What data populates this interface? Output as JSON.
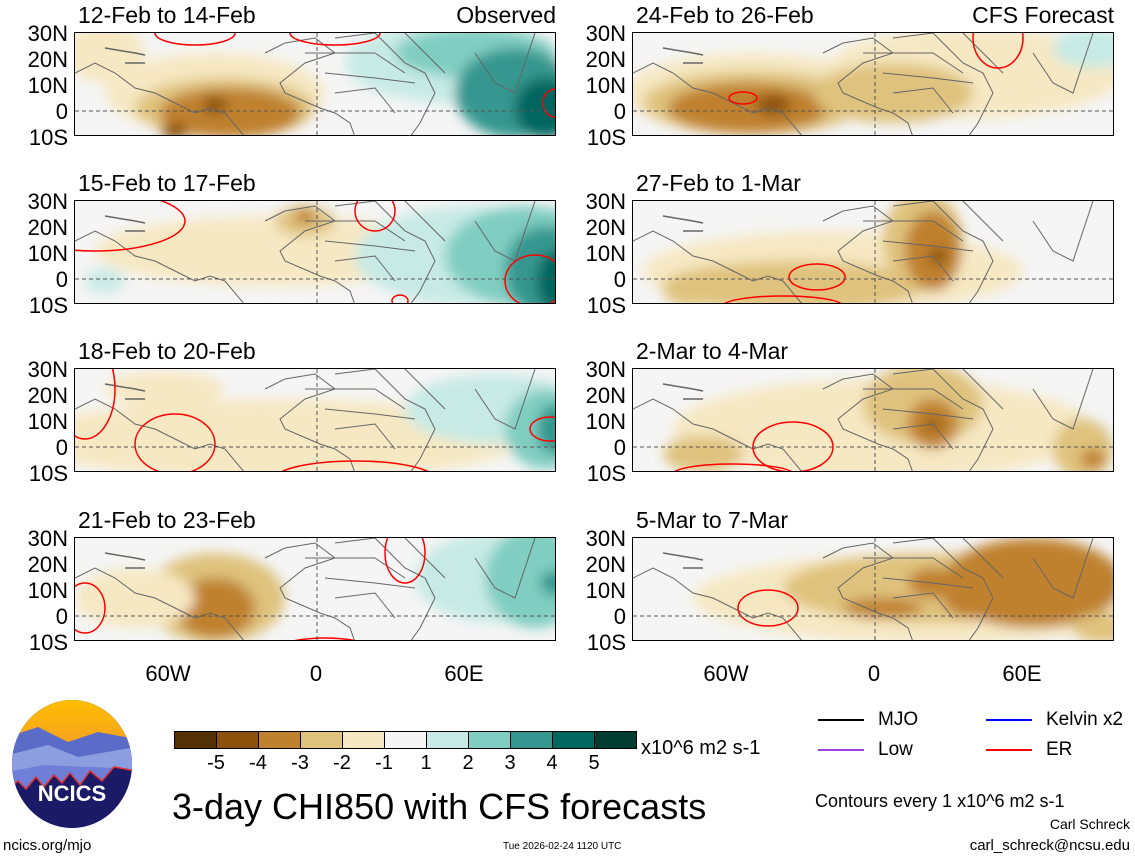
{
  "panels": [
    {
      "title": "12-Feb to 14-Feb",
      "label": "Observed"
    },
    {
      "title": "24-Feb to 26-Feb",
      "label": "CFS Forecast"
    },
    {
      "title": "15-Feb to 17-Feb",
      "label": ""
    },
    {
      "title": "27-Feb to 1-Mar",
      "label": ""
    },
    {
      "title": "18-Feb to 20-Feb",
      "label": ""
    },
    {
      "title": "2-Mar to 4-Mar",
      "label": ""
    },
    {
      "title": "21-Feb to 23-Feb",
      "label": ""
    },
    {
      "title": "5-Mar to 7-Mar",
      "label": ""
    }
  ],
  "lat_labels": [
    "30N",
    "20N",
    "10N",
    "0",
    "10S"
  ],
  "lon_labels": [
    "60W",
    "0",
    "60E"
  ],
  "colorbar": {
    "colors": [
      "#543005",
      "#8c510a",
      "#bf812d",
      "#dfc27d",
      "#f6e8c3",
      "#f5f5f5",
      "#c7eae5",
      "#80cdc1",
      "#35978f",
      "#01665e",
      "#003c30"
    ],
    "ticks": [
      "-5",
      "-4",
      "-3",
      "-2",
      "-1",
      "1",
      "2",
      "3",
      "4",
      "5"
    ],
    "units": "x10^6 m2 s-1"
  },
  "legend": [
    {
      "label": "MJO",
      "color": "#000000"
    },
    {
      "label": "Kelvin x2",
      "color": "#0000ff"
    },
    {
      "label": "Low",
      "color": "#a040e0"
    },
    {
      "label": "ER",
      "color": "#ff0000"
    }
  ],
  "footer": {
    "logo_text": "NCICS",
    "title": "3-day CHI850 with CFS forecasts",
    "contours": "Contours every 1 x10^6 m2 s-1",
    "author": "Carl Schreck",
    "email": "carl_schreck@ncsu.edu",
    "url": "ncics.org/mjo",
    "timestamp": "Tue 2026-02-24 1120 UTC"
  }
}
